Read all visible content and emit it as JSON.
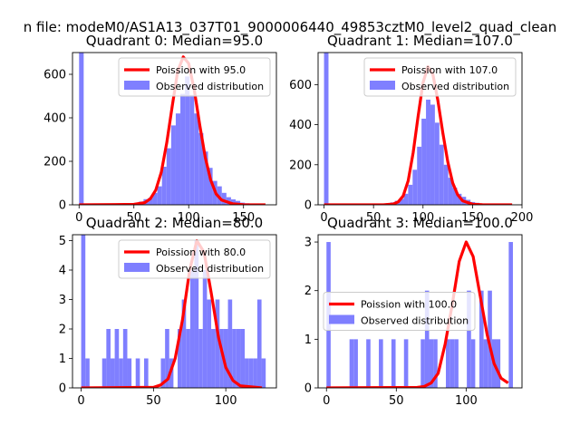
{
  "figure": {
    "suptitle": "n file: modeM0/AS1A13_037T01_9000006440_49853cztM0_level2_quad_clean"
  },
  "chart_data": [
    {
      "type": "bar",
      "title": "Quadrant 0: Median=95.0",
      "xlim": [
        -6,
        180
      ],
      "ylim": [
        0,
        700
      ],
      "xticks": [
        0,
        50,
        100,
        150
      ],
      "yticks": [
        0,
        200,
        400,
        600
      ],
      "legend": {
        "placement": "upper-right",
        "entries": [
          "Poission with 95.0",
          "Observed distribution"
        ]
      },
      "bins": [
        [
          0,
          4.2,
          700
        ],
        [
          4.2,
          8.4,
          5
        ],
        [
          16.8,
          21,
          3
        ],
        [
          21,
          25.2,
          2
        ],
        [
          25.2,
          29.4,
          2
        ],
        [
          37.8,
          42,
          2
        ],
        [
          42,
          46.2,
          3
        ],
        [
          46.2,
          50.4,
          6
        ],
        [
          50.4,
          54.6,
          8
        ],
        [
          54.6,
          58.8,
          15
        ],
        [
          58.8,
          63,
          26
        ],
        [
          63,
          67.2,
          32
        ],
        [
          67.2,
          71.4,
          55
        ],
        [
          71.4,
          75.6,
          85
        ],
        [
          75.6,
          79.8,
          175
        ],
        [
          79.8,
          84,
          260
        ],
        [
          84,
          88.2,
          365
        ],
        [
          88.2,
          92.4,
          420
        ],
        [
          92.4,
          96.6,
          510
        ],
        [
          96.6,
          100.8,
          590
        ],
        [
          100.8,
          105,
          505
        ],
        [
          105,
          109.2,
          420
        ],
        [
          109.2,
          113.4,
          330
        ],
        [
          113.4,
          117.6,
          245
        ],
        [
          117.6,
          121.8,
          170
        ],
        [
          121.8,
          126,
          110
        ],
        [
          126,
          130.2,
          85
        ],
        [
          130.2,
          134.4,
          55
        ],
        [
          134.4,
          138.6,
          35
        ],
        [
          138.6,
          142.8,
          25
        ],
        [
          142.8,
          147,
          18
        ],
        [
          147,
          151.2,
          10
        ],
        [
          151.2,
          155.4,
          7
        ],
        [
          155.4,
          159.6,
          4
        ],
        [
          159.6,
          163.8,
          3
        ],
        [
          163.8,
          168,
          3
        ]
      ],
      "poisson": {
        "name": "Poission with 95.0",
        "x": [
          0,
          50,
          60,
          65,
          70,
          75,
          80,
          85,
          90,
          95,
          100,
          105,
          110,
          115,
          120,
          125,
          130,
          140,
          150,
          170
        ],
        "y": [
          0,
          2,
          10,
          28,
          68,
          150,
          285,
          455,
          615,
          680,
          650,
          530,
          370,
          220,
          115,
          50,
          22,
          5,
          1,
          0
        ]
      }
    },
    {
      "type": "bar",
      "title": "Quadrant 1: Median=107.0",
      "xlim": [
        -6,
        200
      ],
      "ylim": [
        0,
        760
      ],
      "xticks": [
        0,
        50,
        100,
        150,
        200
      ],
      "yticks": [
        0,
        200,
        400,
        600
      ],
      "legend": {
        "placement": "upper-right",
        "entries": [
          "Poission with 107.0",
          "Observed distribution"
        ]
      },
      "bins": [
        [
          0,
          4.5,
          760
        ],
        [
          4.5,
          9,
          4
        ],
        [
          40,
          44.5,
          2
        ],
        [
          53.5,
          58,
          3
        ],
        [
          58,
          62.5,
          5
        ],
        [
          62.5,
          67,
          8
        ],
        [
          67,
          71.5,
          12
        ],
        [
          71.5,
          76,
          20
        ],
        [
          76,
          80.5,
          30
        ],
        [
          80.5,
          85,
          55
        ],
        [
          85,
          89.5,
          100
        ],
        [
          89.5,
          94,
          175
        ],
        [
          94,
          98.5,
          290
        ],
        [
          98.5,
          103,
          430
        ],
        [
          103,
          107.5,
          525
        ],
        [
          107.5,
          112,
          500
        ],
        [
          112,
          116.5,
          410
        ],
        [
          116.5,
          121,
          300
        ],
        [
          121,
          125.5,
          200
        ],
        [
          125.5,
          130,
          135
        ],
        [
          130,
          134.5,
          85
        ],
        [
          134.5,
          139,
          55
        ],
        [
          139,
          143.5,
          40
        ],
        [
          143.5,
          148,
          25
        ],
        [
          148,
          152.5,
          14
        ],
        [
          152.5,
          157,
          10
        ],
        [
          157,
          161.5,
          5
        ],
        [
          161.5,
          166,
          3
        ],
        [
          166,
          170.5,
          2
        ],
        [
          175,
          179.5,
          2
        ]
      ],
      "poisson": {
        "name": "Poission with 107.0",
        "x": [
          0,
          60,
          70,
          75,
          80,
          85,
          90,
          95,
          100,
          105,
          110,
          115,
          120,
          125,
          130,
          135,
          140,
          150,
          160,
          190
        ],
        "y": [
          0,
          0,
          4,
          15,
          45,
          120,
          260,
          440,
          610,
          690,
          650,
          520,
          360,
          215,
          110,
          50,
          20,
          3,
          1,
          0
        ]
      }
    },
    {
      "type": "bar",
      "title": "Quadrant 2: Median=80.0",
      "xlim": [
        -6,
        135
      ],
      "ylim": [
        0,
        5.2
      ],
      "xticks": [
        0,
        50,
        100
      ],
      "yticks": [
        0,
        1,
        2,
        3,
        4,
        5
      ],
      "legend": {
        "placement": "upper-right",
        "entries": [
          "Poission with 80.0",
          "Observed distribution"
        ]
      },
      "bins": [
        [
          0,
          2.9,
          5.2
        ],
        [
          2.9,
          5.8,
          1
        ],
        [
          14.5,
          17.4,
          1
        ],
        [
          17.4,
          20.3,
          2
        ],
        [
          20.3,
          23.2,
          1
        ],
        [
          23.2,
          26.1,
          2
        ],
        [
          26.1,
          29,
          1
        ],
        [
          29,
          31.9,
          2
        ],
        [
          31.9,
          34.8,
          1
        ],
        [
          37.7,
          40.6,
          1
        ],
        [
          43.5,
          46.4,
          1
        ],
        [
          55.1,
          58,
          1
        ],
        [
          58,
          60.9,
          2
        ],
        [
          60.9,
          63.8,
          1
        ],
        [
          66.7,
          69.6,
          2
        ],
        [
          69.6,
          72.5,
          3
        ],
        [
          72.5,
          75.4,
          2
        ],
        [
          75.4,
          78.3,
          4
        ],
        [
          78.3,
          81.2,
          5
        ],
        [
          81.2,
          84.1,
          2
        ],
        [
          84.1,
          87,
          4
        ],
        [
          87,
          89.9,
          3
        ],
        [
          89.9,
          92.8,
          2
        ],
        [
          92.8,
          95.7,
          3
        ],
        [
          95.7,
          98.6,
          2
        ],
        [
          98.6,
          101.5,
          2
        ],
        [
          101.5,
          104.4,
          3
        ],
        [
          104.4,
          107.3,
          2
        ],
        [
          107.3,
          110.2,
          2
        ],
        [
          110.2,
          113.1,
          2
        ],
        [
          113.1,
          116,
          1
        ],
        [
          116,
          118.9,
          1
        ],
        [
          118.9,
          121.8,
          1
        ],
        [
          121.8,
          124.7,
          3
        ],
        [
          124.7,
          127.6,
          1
        ]
      ],
      "poisson": {
        "name": "Poission with 80.0",
        "x": [
          0,
          50,
          55,
          60,
          65,
          70,
          75,
          80,
          85,
          90,
          95,
          100,
          105,
          110,
          125
        ],
        "y": [
          0,
          0.02,
          0.1,
          0.3,
          1.0,
          2.3,
          4.0,
          5.0,
          4.6,
          3.2,
          1.7,
          0.7,
          0.25,
          0.07,
          0
        ]
      }
    },
    {
      "type": "bar",
      "title": "Quadrant 3: Median=100.0",
      "xlim": [
        -6,
        140
      ],
      "ylim": [
        0,
        3.15
      ],
      "xticks": [
        0,
        50,
        100
      ],
      "yticks": [
        0,
        1,
        2,
        3
      ],
      "legend": {
        "placement": "center-left",
        "entries": [
          "Poission with 100.0",
          "Observed distribution"
        ]
      },
      "bins": [
        [
          0,
          3,
          3
        ],
        [
          16.5,
          19.5,
          1
        ],
        [
          19.5,
          22.5,
          1
        ],
        [
          28.5,
          31.5,
          1
        ],
        [
          37.5,
          40.5,
          1
        ],
        [
          46.5,
          49.5,
          1
        ],
        [
          55.5,
          58.5,
          1
        ],
        [
          67.5,
          70.5,
          1
        ],
        [
          70.5,
          73.5,
          2
        ],
        [
          73.5,
          76.5,
          1
        ],
        [
          76.5,
          79.5,
          1
        ],
        [
          85.5,
          88.5,
          1
        ],
        [
          88.5,
          91.5,
          1
        ],
        [
          91.5,
          94.5,
          1
        ],
        [
          100.5,
          103.5,
          2
        ],
        [
          103.5,
          106.5,
          1
        ],
        [
          109.5,
          112.5,
          2
        ],
        [
          112.5,
          115.5,
          1
        ],
        [
          115.5,
          118.5,
          2
        ],
        [
          118.5,
          121.5,
          1
        ],
        [
          121.5,
          124.5,
          1
        ],
        [
          130.5,
          133.5,
          3
        ]
      ],
      "poisson": {
        "name": "Poission with 100.0",
        "x": [
          0,
          65,
          70,
          75,
          80,
          85,
          90,
          95,
          100,
          105,
          110,
          115,
          120,
          125,
          130
        ],
        "y": [
          0,
          0.01,
          0.03,
          0.1,
          0.3,
          0.9,
          1.7,
          2.6,
          3.0,
          2.7,
          1.9,
          1.1,
          0.5,
          0.2,
          0.1
        ]
      }
    }
  ]
}
